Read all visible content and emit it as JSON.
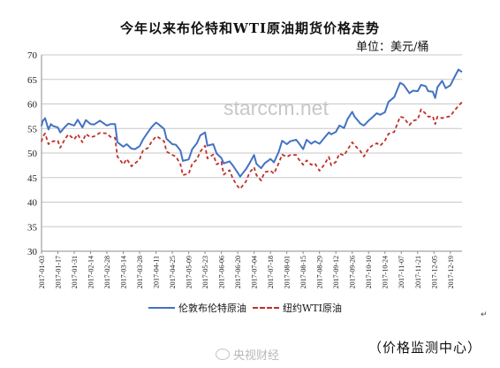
{
  "title": "今年以来布伦特和WTI原油期货价格走势",
  "unit": "单位：美元/桶",
  "watermark": "starccm.net",
  "source_note": "（价格监测中心）",
  "corner_logo": "央视财经",
  "enter_mark": "↵",
  "colors": {
    "brent": "#4472C4",
    "wti": "#C0302A",
    "axis": "#8c8c8c",
    "grid": "#c8c8c8"
  },
  "chart_data": {
    "type": "line",
    "title": "今年以来布伦特和WTI原油期货价格走势",
    "xlabel": "",
    "ylabel": "",
    "ylim": [
      30,
      70
    ],
    "yticks": [
      30,
      35,
      40,
      45,
      50,
      55,
      60,
      65,
      70
    ],
    "grid": "horizontal",
    "legend_position": "bottom",
    "xlim": [
      "2017-01-03",
      "2017-12-29"
    ],
    "x_tick_labels": [
      "2017-01-03",
      "2017-01-17",
      "2017-01-31",
      "2017-02-14",
      "2017-02-28",
      "2017-03-14",
      "2017-03-28",
      "2017-04-11",
      "2017-04-25",
      "2017-05-09",
      "2017-05-23",
      "2017-06-06",
      "2017-06-20",
      "2017-07-04",
      "2017-07-18",
      "2017-08-01",
      "2017-08-15",
      "2017-08-29",
      "2017-09-12",
      "2017-09-26",
      "2017-10-10",
      "2017-10-24",
      "2017-11-07",
      "2017-11-21",
      "2017-12-05",
      "2017-12-19"
    ],
    "series": [
      {
        "name": "伦敦布伦特原油",
        "style": "solid",
        "points": [
          [
            "2017-01-03",
            55.5
          ],
          [
            "2017-01-04",
            56.5
          ],
          [
            "2017-01-06",
            57.1
          ],
          [
            "2017-01-09",
            54.8
          ],
          [
            "2017-01-11",
            55.9
          ],
          [
            "2017-01-13",
            55.5
          ],
          [
            "2017-01-17",
            55.2
          ],
          [
            "2017-01-19",
            54.2
          ],
          [
            "2017-01-23",
            55.3
          ],
          [
            "2017-01-26",
            56.0
          ],
          [
            "2017-01-31",
            55.6
          ],
          [
            "2017-02-03",
            56.8
          ],
          [
            "2017-02-07",
            55.2
          ],
          [
            "2017-02-10",
            56.7
          ],
          [
            "2017-02-14",
            55.9
          ],
          [
            "2017-02-17",
            55.8
          ],
          [
            "2017-02-22",
            56.6
          ],
          [
            "2017-02-28",
            55.6
          ],
          [
            "2017-03-03",
            55.9
          ],
          [
            "2017-03-07",
            55.9
          ],
          [
            "2017-03-09",
            52.2
          ],
          [
            "2017-03-14",
            51.3
          ],
          [
            "2017-03-17",
            51.8
          ],
          [
            "2017-03-21",
            50.9
          ],
          [
            "2017-03-24",
            50.8
          ],
          [
            "2017-03-28",
            51.4
          ],
          [
            "2017-03-31",
            52.8
          ],
          [
            "2017-04-04",
            54.2
          ],
          [
            "2017-04-07",
            55.2
          ],
          [
            "2017-04-11",
            56.2
          ],
          [
            "2017-04-13",
            55.9
          ],
          [
            "2017-04-18",
            54.9
          ],
          [
            "2017-04-20",
            52.9
          ],
          [
            "2017-04-25",
            51.8
          ],
          [
            "2017-04-28",
            51.7
          ],
          [
            "2017-05-02",
            50.5
          ],
          [
            "2017-05-04",
            48.4
          ],
          [
            "2017-05-09",
            48.7
          ],
          [
            "2017-05-12",
            50.8
          ],
          [
            "2017-05-16",
            52.0
          ],
          [
            "2017-05-19",
            53.6
          ],
          [
            "2017-05-23",
            54.2
          ],
          [
            "2017-05-25",
            51.5
          ],
          [
            "2017-05-30",
            51.8
          ],
          [
            "2017-06-02",
            49.9
          ],
          [
            "2017-06-06",
            49.0
          ],
          [
            "2017-06-08",
            47.9
          ],
          [
            "2017-06-13",
            48.3
          ],
          [
            "2017-06-16",
            47.4
          ],
          [
            "2017-06-20",
            46.0
          ],
          [
            "2017-06-22",
            45.2
          ],
          [
            "2017-06-27",
            46.7
          ],
          [
            "2017-06-30",
            47.9
          ],
          [
            "2017-07-04",
            49.6
          ],
          [
            "2017-07-06",
            47.8
          ],
          [
            "2017-07-10",
            46.9
          ],
          [
            "2017-07-13",
            47.9
          ],
          [
            "2017-07-18",
            48.8
          ],
          [
            "2017-07-21",
            48.1
          ],
          [
            "2017-07-25",
            50.2
          ],
          [
            "2017-07-28",
            52.5
          ],
          [
            "2017-08-01",
            51.8
          ],
          [
            "2017-08-04",
            52.4
          ],
          [
            "2017-08-09",
            52.7
          ],
          [
            "2017-08-11",
            52.1
          ],
          [
            "2017-08-15",
            50.8
          ],
          [
            "2017-08-18",
            52.7
          ],
          [
            "2017-08-22",
            51.9
          ],
          [
            "2017-08-25",
            52.4
          ],
          [
            "2017-08-29",
            51.9
          ],
          [
            "2017-09-01",
            52.8
          ],
          [
            "2017-09-06",
            54.2
          ],
          [
            "2017-09-08",
            53.8
          ],
          [
            "2017-09-12",
            54.3
          ],
          [
            "2017-09-15",
            55.6
          ],
          [
            "2017-09-19",
            55.1
          ],
          [
            "2017-09-22",
            56.9
          ],
          [
            "2017-09-26",
            58.4
          ],
          [
            "2017-09-28",
            57.4
          ],
          [
            "2017-10-03",
            56.0
          ],
          [
            "2017-10-06",
            55.6
          ],
          [
            "2017-10-10",
            56.6
          ],
          [
            "2017-10-13",
            57.2
          ],
          [
            "2017-10-17",
            58.1
          ],
          [
            "2017-10-20",
            57.8
          ],
          [
            "2017-10-24",
            58.3
          ],
          [
            "2017-10-27",
            60.4
          ],
          [
            "2017-11-01",
            61.4
          ],
          [
            "2017-11-06",
            64.3
          ],
          [
            "2017-11-09",
            63.9
          ],
          [
            "2017-11-14",
            62.2
          ],
          [
            "2017-11-17",
            62.7
          ],
          [
            "2017-11-21",
            62.6
          ],
          [
            "2017-11-24",
            63.9
          ],
          [
            "2017-11-28",
            63.6
          ],
          [
            "2017-11-30",
            62.6
          ],
          [
            "2017-12-04",
            62.5
          ],
          [
            "2017-12-06",
            61.2
          ],
          [
            "2017-12-08",
            63.4
          ],
          [
            "2017-12-12",
            64.7
          ],
          [
            "2017-12-15",
            63.2
          ],
          [
            "2017-12-19",
            63.8
          ],
          [
            "2017-12-22",
            65.2
          ],
          [
            "2017-12-26",
            67.0
          ],
          [
            "2017-12-29",
            66.5
          ]
        ]
      },
      {
        "name": "纽约WTI原油",
        "style": "dashed",
        "points": [
          [
            "2017-01-03",
            52.3
          ],
          [
            "2017-01-04",
            53.3
          ],
          [
            "2017-01-06",
            54.0
          ],
          [
            "2017-01-09",
            51.8
          ],
          [
            "2017-01-11",
            52.3
          ],
          [
            "2017-01-13",
            52.4
          ],
          [
            "2017-01-17",
            52.5
          ],
          [
            "2017-01-19",
            51.1
          ],
          [
            "2017-01-23",
            52.8
          ],
          [
            "2017-01-26",
            53.8
          ],
          [
            "2017-01-31",
            52.8
          ],
          [
            "2017-02-03",
            53.8
          ],
          [
            "2017-02-07",
            52.2
          ],
          [
            "2017-02-10",
            53.9
          ],
          [
            "2017-02-14",
            53.2
          ],
          [
            "2017-02-17",
            53.4
          ],
          [
            "2017-02-22",
            54.1
          ],
          [
            "2017-02-28",
            54.0
          ],
          [
            "2017-03-03",
            53.3
          ],
          [
            "2017-03-07",
            53.1
          ],
          [
            "2017-03-09",
            49.3
          ],
          [
            "2017-03-14",
            47.7
          ],
          [
            "2017-03-17",
            48.8
          ],
          [
            "2017-03-21",
            47.3
          ],
          [
            "2017-03-24",
            47.9
          ],
          [
            "2017-03-28",
            48.7
          ],
          [
            "2017-03-31",
            50.6
          ],
          [
            "2017-04-04",
            51.0
          ],
          [
            "2017-04-07",
            52.2
          ],
          [
            "2017-04-11",
            53.4
          ],
          [
            "2017-04-13",
            53.2
          ],
          [
            "2017-04-18",
            52.4
          ],
          [
            "2017-04-20",
            50.3
          ],
          [
            "2017-04-25",
            49.6
          ],
          [
            "2017-04-28",
            49.3
          ],
          [
            "2017-05-02",
            47.7
          ],
          [
            "2017-05-04",
            45.5
          ],
          [
            "2017-05-09",
            45.8
          ],
          [
            "2017-05-12",
            47.8
          ],
          [
            "2017-05-16",
            48.7
          ],
          [
            "2017-05-19",
            50.3
          ],
          [
            "2017-05-23",
            51.5
          ],
          [
            "2017-05-25",
            48.9
          ],
          [
            "2017-05-30",
            49.7
          ],
          [
            "2017-06-02",
            47.7
          ],
          [
            "2017-06-06",
            48.2
          ],
          [
            "2017-06-08",
            45.6
          ],
          [
            "2017-06-13",
            46.5
          ],
          [
            "2017-06-16",
            44.7
          ],
          [
            "2017-06-20",
            43.2
          ],
          [
            "2017-06-22",
            42.7
          ],
          [
            "2017-06-27",
            44.2
          ],
          [
            "2017-06-30",
            46.0
          ],
          [
            "2017-07-04",
            47.1
          ],
          [
            "2017-07-06",
            45.5
          ],
          [
            "2017-07-10",
            44.4
          ],
          [
            "2017-07-13",
            46.1
          ],
          [
            "2017-07-18",
            46.4
          ],
          [
            "2017-07-21",
            45.8
          ],
          [
            "2017-07-25",
            47.9
          ],
          [
            "2017-07-28",
            49.7
          ],
          [
            "2017-08-01",
            49.2
          ],
          [
            "2017-08-04",
            49.6
          ],
          [
            "2017-08-09",
            49.6
          ],
          [
            "2017-08-11",
            48.8
          ],
          [
            "2017-08-15",
            47.6
          ],
          [
            "2017-08-18",
            48.5
          ],
          [
            "2017-08-22",
            47.6
          ],
          [
            "2017-08-25",
            47.9
          ],
          [
            "2017-08-29",
            46.4
          ],
          [
            "2017-09-01",
            47.3
          ],
          [
            "2017-09-06",
            49.2
          ],
          [
            "2017-09-08",
            47.5
          ],
          [
            "2017-09-12",
            48.2
          ],
          [
            "2017-09-15",
            49.9
          ],
          [
            "2017-09-19",
            49.5
          ],
          [
            "2017-09-22",
            50.7
          ],
          [
            "2017-09-26",
            52.2
          ],
          [
            "2017-09-28",
            51.6
          ],
          [
            "2017-10-03",
            50.4
          ],
          [
            "2017-10-06",
            49.3
          ],
          [
            "2017-10-10",
            50.9
          ],
          [
            "2017-10-13",
            51.5
          ],
          [
            "2017-10-17",
            52.0
          ],
          [
            "2017-10-20",
            51.5
          ],
          [
            "2017-10-24",
            52.5
          ],
          [
            "2017-10-27",
            53.9
          ],
          [
            "2017-11-01",
            54.3
          ],
          [
            "2017-11-06",
            57.4
          ],
          [
            "2017-11-09",
            57.2
          ],
          [
            "2017-11-14",
            55.7
          ],
          [
            "2017-11-17",
            56.6
          ],
          [
            "2017-11-21",
            56.8
          ],
          [
            "2017-11-24",
            58.9
          ],
          [
            "2017-11-28",
            58.0
          ],
          [
            "2017-11-30",
            57.4
          ],
          [
            "2017-12-04",
            57.5
          ],
          [
            "2017-12-06",
            55.9
          ],
          [
            "2017-12-08",
            57.4
          ],
          [
            "2017-12-12",
            57.1
          ],
          [
            "2017-12-15",
            57.3
          ],
          [
            "2017-12-19",
            57.5
          ],
          [
            "2017-12-22",
            58.5
          ],
          [
            "2017-12-26",
            59.6
          ],
          [
            "2017-12-29",
            60.4
          ]
        ]
      }
    ]
  }
}
